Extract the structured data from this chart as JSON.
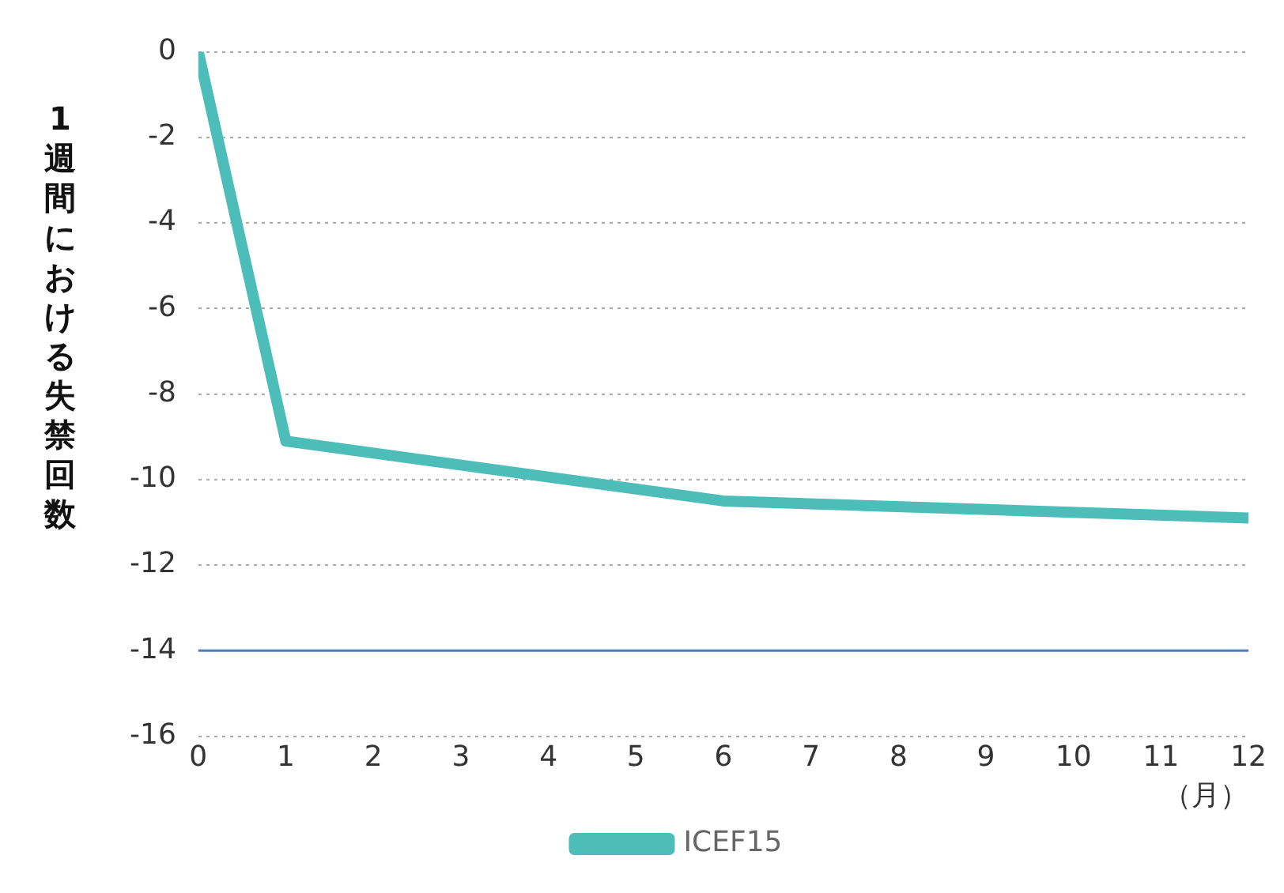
{
  "chart_data": {
    "type": "line",
    "ylabel": "1週間における失禁回数",
    "xlabel": "（月）",
    "x": [
      0,
      1,
      6,
      12
    ],
    "series": [
      {
        "name": "ICEF15",
        "color": "#4dbdb9",
        "values": [
          0,
          -9.1,
          -10.5,
          -10.9
        ]
      }
    ],
    "xlim": [
      0,
      12
    ],
    "xticks": [
      0,
      1,
      2,
      3,
      4,
      5,
      6,
      7,
      8,
      9,
      10,
      11,
      12
    ],
    "ylim": [
      -16,
      0
    ],
    "yticks": [
      0,
      -2,
      -4,
      -6,
      -8,
      -10,
      -12,
      -14,
      -16
    ],
    "ref_lines": [
      {
        "axis": "y",
        "value": -14,
        "color": "#4a7ebb",
        "line_style": "solid"
      }
    ],
    "grid": "y",
    "legend": "bottom",
    "marker": "none",
    "line_style": "solid"
  }
}
